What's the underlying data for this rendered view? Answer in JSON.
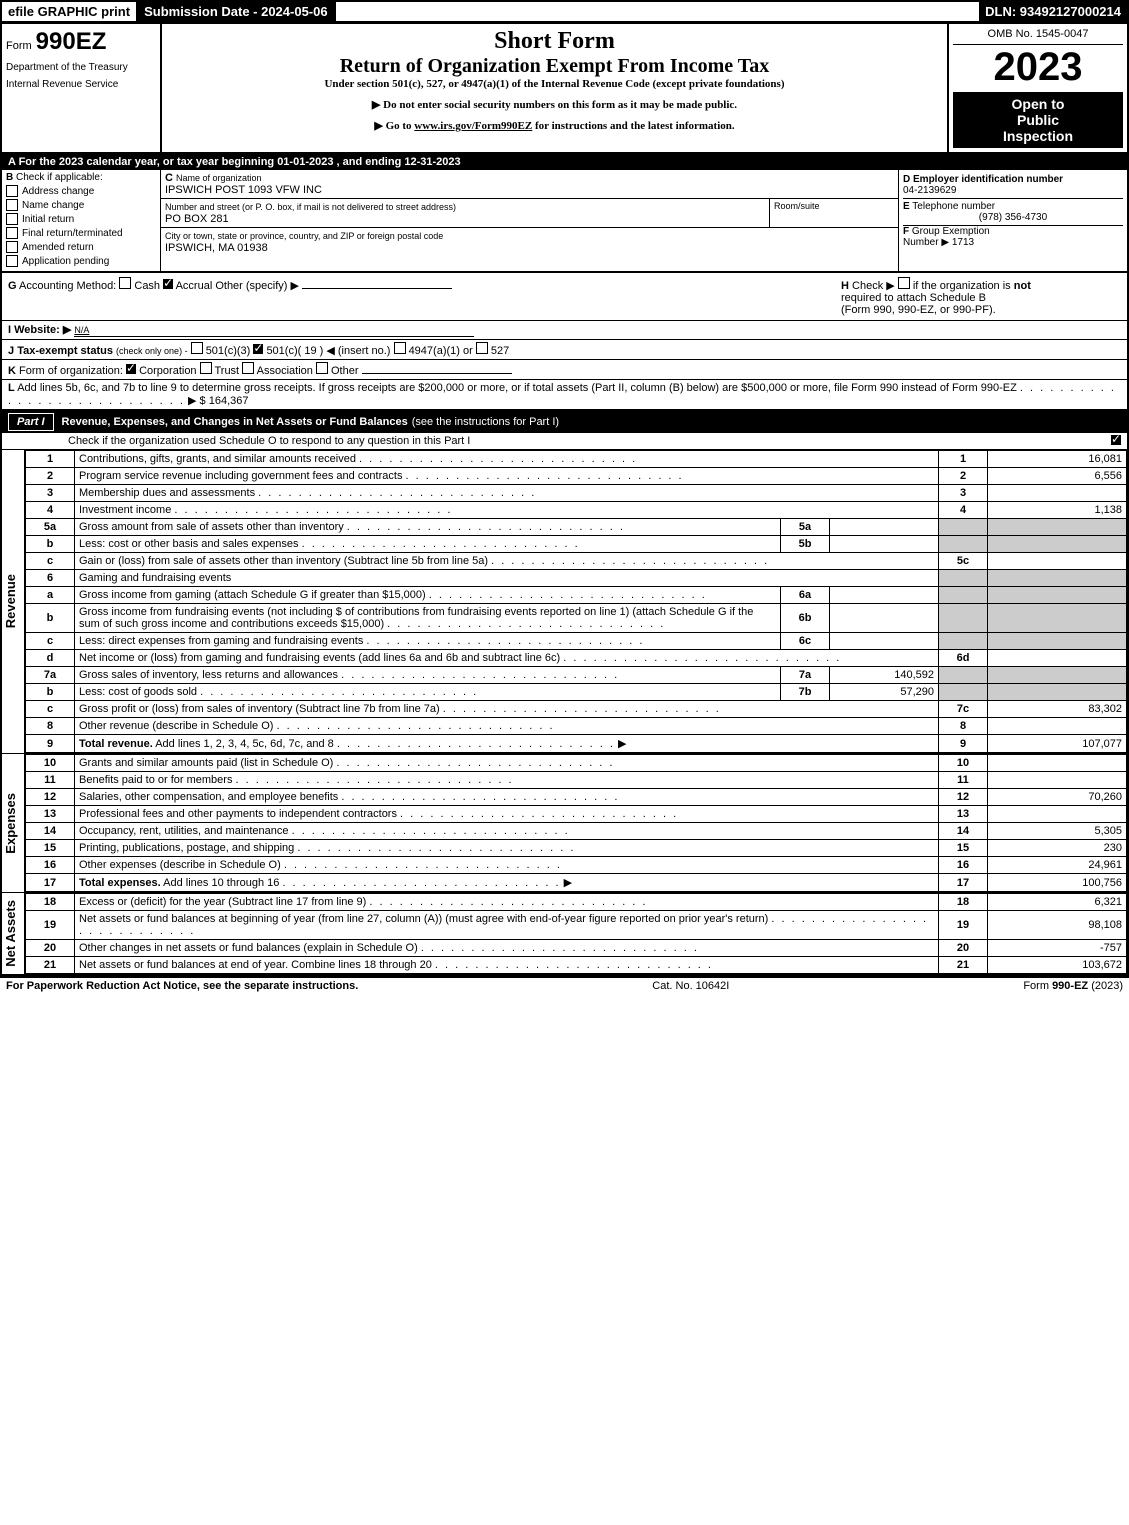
{
  "top": {
    "efile": "efile GRAPHIC print",
    "sub_date": "Submission Date - 2024-05-06",
    "dln": "DLN: 93492127000214"
  },
  "header": {
    "form_word": "Form",
    "form_num": "990EZ",
    "dept": "Department of the Treasury",
    "irs": "Internal Revenue Service",
    "title_short": "Short Form",
    "title_return": "Return of Organization Exempt From Income Tax",
    "title_under": "Under section 501(c), 527, or 4947(a)(1) of the Internal Revenue Code (except private foundations)",
    "instr1": "▶ Do not enter social security numbers on this form as it may be made public.",
    "instr2_pre": "▶ Go to ",
    "instr2_link": "www.irs.gov/Form990EZ",
    "instr2_post": " for instructions and the latest information.",
    "omb": "OMB No. 1545-0047",
    "year": "2023",
    "open1": "Open to",
    "open2": "Public",
    "open3": "Inspection"
  },
  "a": {
    "text": "A  For the 2023 calendar year, or tax year beginning 01-01-2023 , and ending 12-31-2023"
  },
  "b": {
    "label": "B",
    "text": "Check if applicable:",
    "opts": [
      "Address change",
      "Name change",
      "Initial return",
      "Final return/terminated",
      "Amended return",
      "Application pending"
    ]
  },
  "c": {
    "label": "C",
    "name_label": "Name of organization",
    "name": "IPSWICH POST 1093 VFW INC",
    "street_label": "Number and street (or P. O. box, if mail is not delivered to street address)",
    "street": "PO BOX 281",
    "room_label": "Room/suite",
    "city_label": "City or town, state or province, country, and ZIP or foreign postal code",
    "city": "IPSWICH, MA  01938"
  },
  "d": {
    "label": "D",
    "ein_label": "Employer identification number",
    "ein": "04-2139629"
  },
  "e": {
    "label": "E",
    "tel_label": "Telephone number",
    "tel": "(978) 356-4730"
  },
  "f": {
    "label": "F",
    "ge_label": "Group Exemption",
    "ge_label2": "Number ▶",
    "ge": "1713"
  },
  "g": {
    "label": "G",
    "text": "Accounting Method:",
    "cash": "Cash",
    "accrual": "Accrual",
    "other": "Other (specify) ▶"
  },
  "h": {
    "label": "H",
    "text1": "Check ▶",
    "text2": "if the organization is",
    "not": "not",
    "text3": "required to attach Schedule B",
    "text4": "(Form 990, 990-EZ, or 990-PF)."
  },
  "i": {
    "label": "I",
    "text": "Website: ▶",
    "val": "N/A"
  },
  "j": {
    "label": "J",
    "text_pre": "Tax-exempt status",
    "text_sub": "(check only one) -",
    "opt1": "501(c)(3)",
    "opt2": "501(c)( 19 ) ◀ (insert no.)",
    "opt3": "4947(a)(1) or",
    "opt4": "527"
  },
  "k": {
    "label": "K",
    "text": "Form of organization:",
    "opts": [
      "Corporation",
      "Trust",
      "Association",
      "Other"
    ]
  },
  "l": {
    "label": "L",
    "text": "Add lines 5b, 6c, and 7b to line 9 to determine gross receipts. If gross receipts are $200,000 or more, or if total assets (Part II, column (B) below) are $500,000 or more, file Form 990 instead of Form 990-EZ",
    "val": "$ 164,367"
  },
  "part1": {
    "label": "Part I",
    "title": "Revenue, Expenses, and Changes in Net Assets or Fund Balances",
    "sub": "(see the instructions for Part I)",
    "check_text": "Check if the organization used Schedule O to respond to any question in this Part I"
  },
  "sections": {
    "revenue": "Revenue",
    "expenses": "Expenses",
    "netassets": "Net Assets"
  },
  "lines": [
    {
      "n": "1",
      "desc": "Contributions, gifts, grants, and similar amounts received",
      "rn": "1",
      "val": "16,081"
    },
    {
      "n": "2",
      "desc": "Program service revenue including government fees and contracts",
      "rn": "2",
      "val": "6,556"
    },
    {
      "n": "3",
      "desc": "Membership dues and assessments",
      "rn": "3",
      "val": ""
    },
    {
      "n": "4",
      "desc": "Investment income",
      "rn": "4",
      "val": "1,138"
    },
    {
      "n": "5a",
      "desc": "Gross amount from sale of assets other than inventory",
      "mn": "5a",
      "mv": "",
      "shaded": true
    },
    {
      "n": "b",
      "desc": "Less: cost or other basis and sales expenses",
      "mn": "5b",
      "mv": "",
      "shaded": true
    },
    {
      "n": "c",
      "desc": "Gain or (loss) from sale of assets other than inventory (Subtract line 5b from line 5a)",
      "rn": "5c",
      "val": ""
    },
    {
      "n": "6",
      "desc": "Gaming and fundraising events",
      "shaded": true,
      "noright": true
    },
    {
      "n": "a",
      "desc": "Gross income from gaming (attach Schedule G if greater than $15,000)",
      "mn": "6a",
      "mv": "",
      "shaded": true
    },
    {
      "n": "b",
      "desc": "Gross income from fundraising events (not including $                  of contributions from fundraising events reported on line 1) (attach Schedule G if the sum of such gross income and contributions exceeds $15,000)",
      "mn": "6b",
      "mv": "",
      "shaded": true
    },
    {
      "n": "c",
      "desc": "Less: direct expenses from gaming and fundraising events",
      "mn": "6c",
      "mv": "",
      "shaded": true
    },
    {
      "n": "d",
      "desc": "Net income or (loss) from gaming and fundraising events (add lines 6a and 6b and subtract line 6c)",
      "rn": "6d",
      "val": ""
    },
    {
      "n": "7a",
      "desc": "Gross sales of inventory, less returns and allowances",
      "mn": "7a",
      "mv": "140,592",
      "shaded": true
    },
    {
      "n": "b",
      "desc": "Less: cost of goods sold",
      "mn": "7b",
      "mv": "57,290",
      "shaded": true
    },
    {
      "n": "c",
      "desc": "Gross profit or (loss) from sales of inventory (Subtract line 7b from line 7a)",
      "rn": "7c",
      "val": "83,302"
    },
    {
      "n": "8",
      "desc": "Other revenue (describe in Schedule O)",
      "rn": "8",
      "val": ""
    },
    {
      "n": "9",
      "desc": "Total revenue. Add lines 1, 2, 3, 4, 5c, 6d, 7c, and 8",
      "rn": "9",
      "val": "107,077",
      "bold": true,
      "arrow": true
    }
  ],
  "exp_lines": [
    {
      "n": "10",
      "desc": "Grants and similar amounts paid (list in Schedule O)",
      "rn": "10",
      "val": ""
    },
    {
      "n": "11",
      "desc": "Benefits paid to or for members",
      "rn": "11",
      "val": ""
    },
    {
      "n": "12",
      "desc": "Salaries, other compensation, and employee benefits",
      "rn": "12",
      "val": "70,260"
    },
    {
      "n": "13",
      "desc": "Professional fees and other payments to independent contractors",
      "rn": "13",
      "val": ""
    },
    {
      "n": "14",
      "desc": "Occupancy, rent, utilities, and maintenance",
      "rn": "14",
      "val": "5,305"
    },
    {
      "n": "15",
      "desc": "Printing, publications, postage, and shipping",
      "rn": "15",
      "val": "230"
    },
    {
      "n": "16",
      "desc": "Other expenses (describe in Schedule O)",
      "rn": "16",
      "val": "24,961"
    },
    {
      "n": "17",
      "desc": "Total expenses. Add lines 10 through 16",
      "rn": "17",
      "val": "100,756",
      "bold": true,
      "arrow": true
    }
  ],
  "na_lines": [
    {
      "n": "18",
      "desc": "Excess or (deficit) for the year (Subtract line 17 from line 9)",
      "rn": "18",
      "val": "6,321"
    },
    {
      "n": "19",
      "desc": "Net assets or fund balances at beginning of year (from line 27, column (A)) (must agree with end-of-year figure reported on prior year's return)",
      "rn": "19",
      "val": "98,108"
    },
    {
      "n": "20",
      "desc": "Other changes in net assets or fund balances (explain in Schedule O)",
      "rn": "20",
      "val": "-757"
    },
    {
      "n": "21",
      "desc": "Net assets or fund balances at end of year. Combine lines 18 through 20",
      "rn": "21",
      "val": "103,672"
    }
  ],
  "footer": {
    "left": "For Paperwork Reduction Act Notice, see the separate instructions.",
    "mid": "Cat. No. 10642I",
    "right_pre": "Form ",
    "right_form": "990-EZ",
    "right_post": " (2023)"
  }
}
